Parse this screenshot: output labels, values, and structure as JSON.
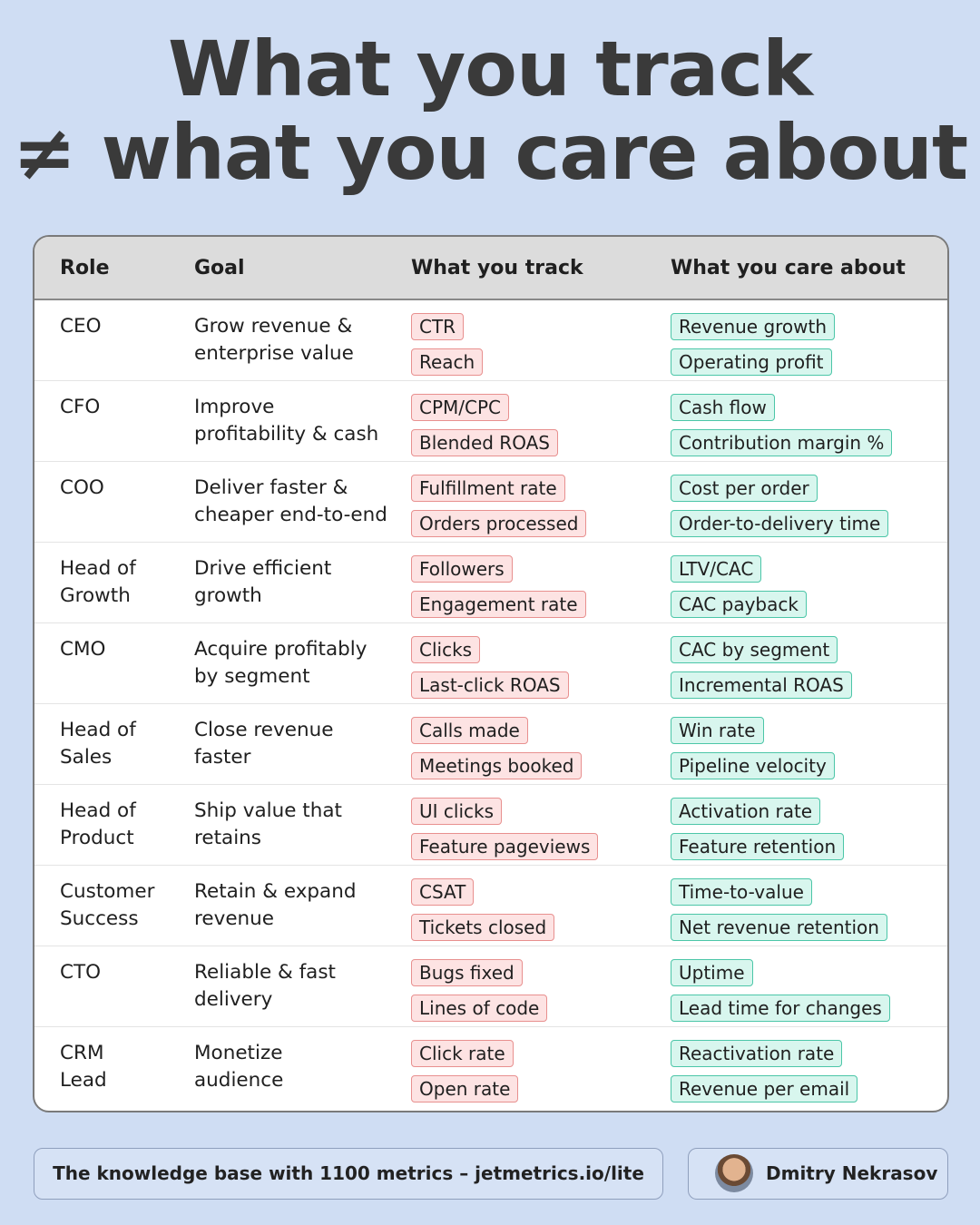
{
  "title": {
    "line1": "What you track",
    "line2": "≠ what you care about"
  },
  "table": {
    "headers": {
      "role": "Role",
      "goal": "Goal",
      "track": "What you track",
      "care": "What you care about"
    },
    "rows": [
      {
        "role": "CEO",
        "goal": "Grow revenue &\nenterprise value",
        "track": [
          "CTR",
          "Reach"
        ],
        "care": [
          "Revenue growth",
          "Operating profit"
        ]
      },
      {
        "role": "CFO",
        "goal": "Improve\nprofitability & cash",
        "track": [
          "CPM/CPC",
          "Blended ROAS"
        ],
        "care": [
          "Cash flow",
          "Contribution margin %"
        ]
      },
      {
        "role": "COO",
        "goal": "Deliver faster &\ncheaper end-to-end",
        "track": [
          "Fulfillment rate",
          "Orders processed"
        ],
        "care": [
          "Cost per order",
          "Order-to-delivery time"
        ]
      },
      {
        "role": "Head of\nGrowth",
        "goal": "Drive efficient\ngrowth",
        "track": [
          "Followers",
          "Engagement rate"
        ],
        "care": [
          "LTV/CAC",
          "CAC payback"
        ]
      },
      {
        "role": "CMO",
        "goal": "Acquire profitably\nby segment",
        "track": [
          "Clicks",
          "Last-click ROAS"
        ],
        "care": [
          "CAC by segment",
          "Incremental ROAS"
        ]
      },
      {
        "role": "Head of\nSales",
        "goal": "Close revenue\nfaster",
        "track": [
          "Calls made",
          "Meetings booked"
        ],
        "care": [
          "Win rate",
          "Pipeline velocity"
        ]
      },
      {
        "role": "Head of\nProduct",
        "goal": "Ship value that\nretains",
        "track": [
          "UI clicks",
          "Feature pageviews"
        ],
        "care": [
          "Activation rate",
          "Feature retention"
        ]
      },
      {
        "role": "Customer\nSuccess",
        "goal": "Retain & expand\nrevenue",
        "track": [
          "CSAT",
          "Tickets closed"
        ],
        "care": [
          "Time-to-value",
          "Net revenue retention"
        ]
      },
      {
        "role": "CTO",
        "goal": "Reliable & fast\ndelivery",
        "track": [
          "Bugs fixed",
          "Lines of code"
        ],
        "care": [
          "Uptime",
          "Lead time for changes"
        ]
      },
      {
        "role": "CRM\nLead",
        "goal": "Monetize\naudience",
        "track": [
          "Click rate",
          "Open rate"
        ],
        "care": [
          "Reactivation rate",
          "Revenue per email"
        ]
      }
    ]
  },
  "footer": {
    "link_text": "The knowledge base with 1100 metrics – jetmetrics.io/lite",
    "author": "Dmitry Nekrasov"
  },
  "colors": {
    "background": "#cfddf3",
    "track_chip_bg": "#fde3e3",
    "track_chip_border": "#e8908f",
    "care_chip_bg": "#d8f6ee",
    "care_chip_border": "#4cc6a8"
  }
}
